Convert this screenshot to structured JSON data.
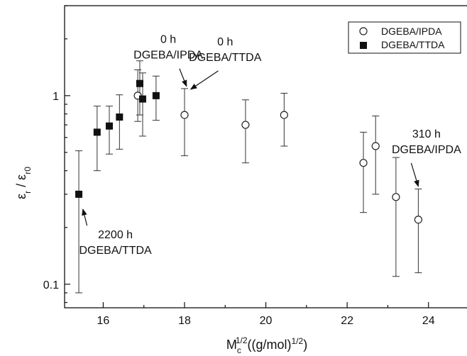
{
  "chart_data": {
    "type": "scatter",
    "x_scale": "linear",
    "y_scale": "log",
    "xlim": [
      15.05,
      25.0
    ],
    "ylim": [
      0.075,
      3.0
    ],
    "x_ticks": [
      "16",
      "18",
      "20",
      "22",
      "24"
    ],
    "y_ticks": [
      "0.1",
      "1"
    ],
    "xlabel": {
      "base": "M",
      "sub": "c",
      "sup": "1/2",
      "rest": "((g/mol)",
      "rest_sup": "1/2",
      "close": ")"
    },
    "ylabel": {
      "a": "ε",
      "a_sub": "r",
      "sep": " / ",
      "b": "ε",
      "b_sub": "r0"
    },
    "legend": {
      "placement": "top-right"
    },
    "series": [
      {
        "name": "DGEBA/IPDA",
        "marker": "open-circle",
        "points": [
          {
            "x": 16.85,
            "y": 1.0,
            "lo": 0.73,
            "hi": 1.37
          },
          {
            "x": 18.0,
            "y": 0.79,
            "lo": 0.48,
            "hi": 1.09
          },
          {
            "x": 19.5,
            "y": 0.7,
            "lo": 0.44,
            "hi": 0.95
          },
          {
            "x": 20.45,
            "y": 0.79,
            "lo": 0.54,
            "hi": 1.03
          },
          {
            "x": 22.4,
            "y": 0.44,
            "lo": 0.24,
            "hi": 0.64
          },
          {
            "x": 22.7,
            "y": 0.54,
            "lo": 0.3,
            "hi": 0.78
          },
          {
            "x": 23.2,
            "y": 0.29,
            "lo": 0.11,
            "hi": 0.47
          },
          {
            "x": 23.75,
            "y": 0.22,
            "lo": 0.115,
            "hi": 0.32
          }
        ]
      },
      {
        "name": "DGEBA/TTDA",
        "marker": "filled-square",
        "points": [
          {
            "x": 15.4,
            "y": 0.3,
            "lo": 0.09,
            "hi": 0.51
          },
          {
            "x": 15.85,
            "y": 0.64,
            "lo": 0.4,
            "hi": 0.88
          },
          {
            "x": 16.15,
            "y": 0.69,
            "lo": 0.49,
            "hi": 0.88
          },
          {
            "x": 16.4,
            "y": 0.77,
            "lo": 0.52,
            "hi": 1.01
          },
          {
            "x": 16.9,
            "y": 1.16,
            "lo": 0.79,
            "hi": 1.53
          },
          {
            "x": 16.97,
            "y": 0.96,
            "lo": 0.61,
            "hi": 1.32
          },
          {
            "x": 17.3,
            "y": 1.0,
            "lo": 0.74,
            "hi": 1.27
          }
        ]
      }
    ],
    "annotations": [
      {
        "lines": [
          "0 h",
          "DGEBA/IPDA"
        ],
        "anchor": [
          17.6,
          1.9
        ],
        "tip": [
          18.05,
          1.12
        ]
      },
      {
        "lines": [
          "0 h",
          "DGEBA/TTDA"
        ],
        "anchor": [
          19.0,
          1.85
        ],
        "tip": [
          18.15,
          1.08
        ]
      },
      {
        "lines": [
          "310 h",
          "DGEBA/IPDA"
        ],
        "anchor": [
          23.95,
          0.6
        ],
        "tip": [
          23.75,
          0.33
        ]
      },
      {
        "lines": [
          "2200 h",
          "DGEBA/TTDA"
        ],
        "anchor": [
          16.3,
          0.175
        ],
        "tip": [
          15.5,
          0.25
        ]
      }
    ]
  }
}
